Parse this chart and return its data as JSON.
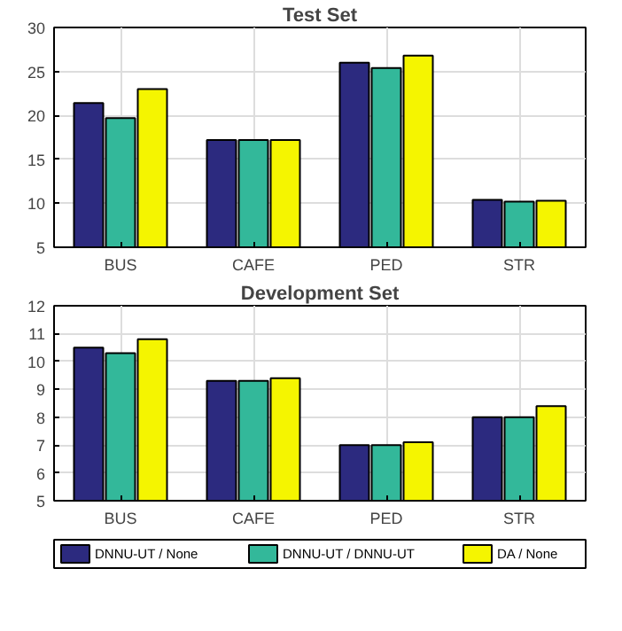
{
  "chart_data": [
    {
      "type": "bar",
      "title": "Test Set",
      "categories": [
        "BUS",
        "CAFE",
        "PED",
        "STR"
      ],
      "ylim": [
        5,
        30
      ],
      "yticks": [
        5,
        10,
        15,
        20,
        25,
        30
      ],
      "grid": true,
      "legend": false,
      "series": [
        {
          "color": "#2c2a7f",
          "values": [
            21.4,
            17.2,
            26.0,
            10.4
          ]
        },
        {
          "color": "#33b89a",
          "values": [
            19.7,
            17.2,
            25.4,
            10.2
          ]
        },
        {
          "color": "#f5f500",
          "values": [
            23.0,
            17.2,
            26.8,
            10.3
          ]
        }
      ]
    },
    {
      "type": "bar",
      "title": "Development Set",
      "categories": [
        "BUS",
        "CAFE",
        "PED",
        "STR"
      ],
      "ylim": [
        5,
        12
      ],
      "yticks": [
        5,
        6,
        7,
        8,
        9,
        10,
        11,
        12
      ],
      "grid": true,
      "legend": "bottom",
      "series": [
        {
          "name": "DNNU-UT / None",
          "color": "#2c2a7f",
          "values": [
            10.5,
            9.3,
            7.0,
            8.0
          ]
        },
        {
          "name": "DNNU-UT / DNNU-UT",
          "color": "#33b89a",
          "values": [
            10.3,
            9.3,
            7.0,
            8.0
          ]
        },
        {
          "name": "DA / None",
          "color": "#f5f500",
          "values": [
            10.8,
            9.4,
            7.1,
            8.4
          ]
        }
      ]
    }
  ]
}
